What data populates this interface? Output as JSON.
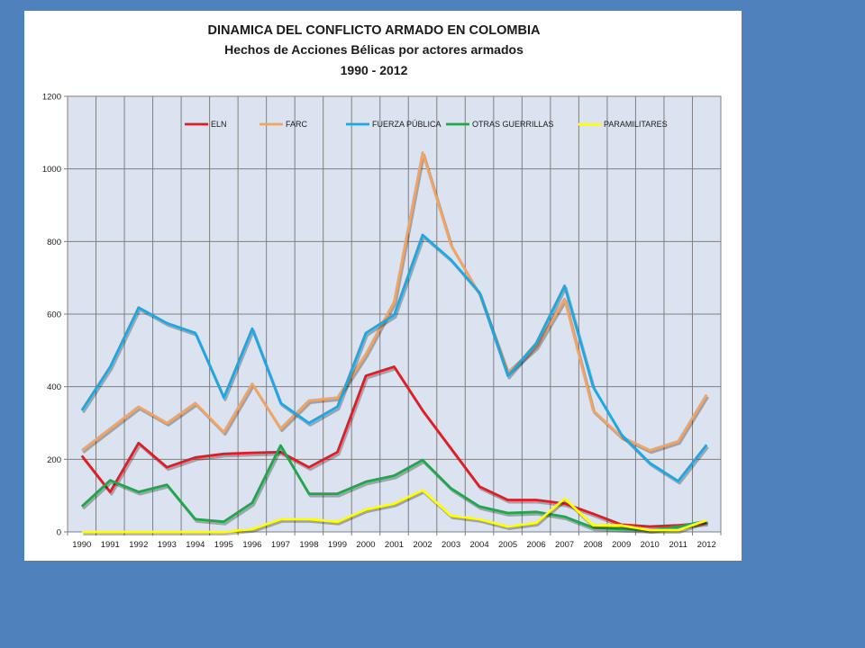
{
  "chart_data": {
    "type": "line",
    "title": "DINAMICA DEL CONFLICTO ARMADO EN COLOMBIA",
    "subtitle": "Hechos de Acciones Bélicas por actores armados",
    "period": "1990 - 2012",
    "x": [
      "1990",
      "1991",
      "1992",
      "1993",
      "1994",
      "1995",
      "1996",
      "1997",
      "1998",
      "1999",
      "2000",
      "2001",
      "2002",
      "2003",
      "2004",
      "2005",
      "2006",
      "2007",
      "2008",
      "2009",
      "2010",
      "2011",
      "2012"
    ],
    "ylim": [
      0,
      1200
    ],
    "yticks": [
      "0",
      "200",
      "400",
      "600",
      "800",
      "1000",
      "1200"
    ],
    "grid": "on",
    "legend_position": "top",
    "series": [
      {
        "name": "ELN",
        "color": "#e31b23",
        "values": [
          210,
          110,
          245,
          178,
          205,
          215,
          218,
          220,
          178,
          220,
          430,
          455,
          335,
          230,
          125,
          88,
          88,
          78,
          50,
          20,
          15,
          18,
          25
        ]
      },
      {
        "name": "FARC",
        "color": "#f4a460",
        "values": [
          225,
          285,
          345,
          300,
          355,
          275,
          408,
          285,
          362,
          370,
          490,
          635,
          1045,
          790,
          655,
          440,
          510,
          642,
          335,
          262,
          225,
          250,
          378
        ]
      },
      {
        "name": "FUERZA PÚBLICA",
        "color": "#1ca8e3",
        "values": [
          335,
          455,
          618,
          575,
          548,
          370,
          560,
          355,
          300,
          345,
          548,
          598,
          818,
          750,
          660,
          430,
          520,
          678,
          400,
          268,
          190,
          140,
          240
        ]
      },
      {
        "name": "OTRAS GUERRILLAS",
        "color": "#1fa84a",
        "values": [
          70,
          142,
          110,
          130,
          35,
          28,
          80,
          238,
          105,
          105,
          138,
          155,
          198,
          120,
          70,
          52,
          55,
          42,
          12,
          8,
          5,
          15,
          30
        ]
      },
      {
        "name": "PARAMILITARES",
        "color": "#ffff00",
        "values": [
          0,
          0,
          0,
          0,
          0,
          0,
          8,
          35,
          35,
          28,
          62,
          78,
          115,
          45,
          35,
          15,
          25,
          92,
          18,
          18,
          5,
          5,
          32
        ]
      }
    ]
  }
}
